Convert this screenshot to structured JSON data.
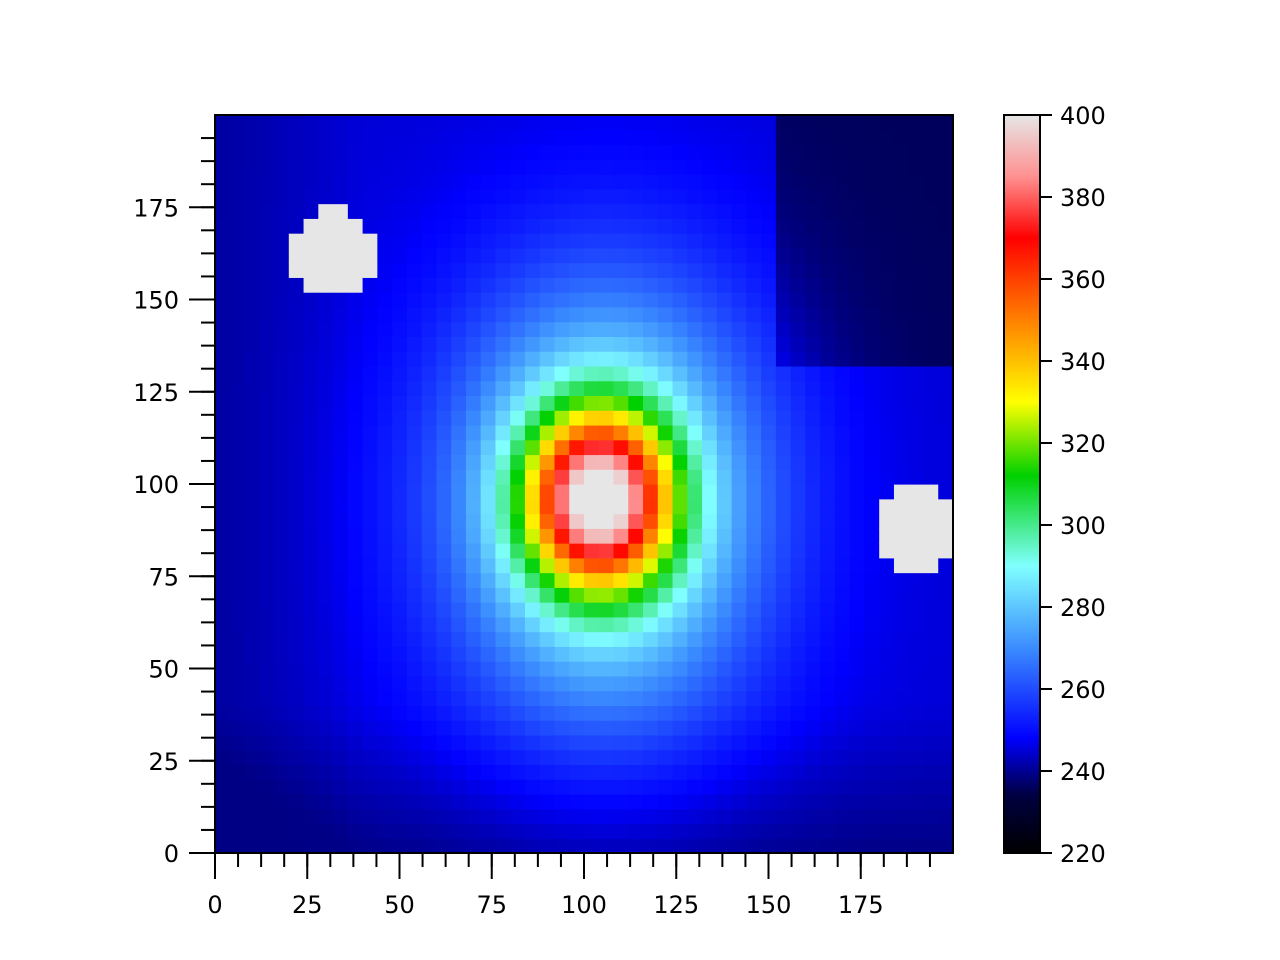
{
  "chart_data": {
    "type": "heatmap",
    "title": "",
    "xlabel": "",
    "ylabel": "",
    "xlim": [
      0,
      200
    ],
    "ylim": [
      0,
      200
    ],
    "x_ticks": [
      0,
      25,
      50,
      75,
      100,
      125,
      150,
      175
    ],
    "y_ticks": [
      0,
      25,
      50,
      75,
      100,
      125,
      150,
      175
    ],
    "x_minor_step": 6.25,
    "y_minor_step": 6.25,
    "grid": false,
    "colorbar": {
      "min": 220,
      "max": 400,
      "ticks": [
        220,
        240,
        260,
        280,
        300,
        320,
        340,
        360,
        380,
        400
      ],
      "colormap": [
        {
          "v": 220,
          "c": "#000000"
        },
        {
          "v": 234,
          "c": "#000040"
        },
        {
          "v": 248,
          "c": "#0000ff"
        },
        {
          "v": 270,
          "c": "#3b8cff"
        },
        {
          "v": 290,
          "c": "#80ffff"
        },
        {
          "v": 312,
          "c": "#00d000"
        },
        {
          "v": 330,
          "c": "#ffff00"
        },
        {
          "v": 350,
          "c": "#ff8000"
        },
        {
          "v": 370,
          "c": "#ff0000"
        },
        {
          "v": 385,
          "c": "#ff9090"
        },
        {
          "v": 400,
          "c": "#e6e6e6"
        }
      ]
    },
    "field": {
      "background": 245,
      "peak": [
        104,
        96,
        115,
        19,
        23
      ],
      "halo": [
        106,
        95,
        55,
        42,
        58
      ],
      "left_dark": -6,
      "top_right_dark": -9,
      "bottom_dark": -6
    },
    "hotspots": [
      {
        "x": 32,
        "y": 163,
        "value": 400
      },
      {
        "x": 190,
        "y": 87,
        "value": 400
      }
    ]
  }
}
